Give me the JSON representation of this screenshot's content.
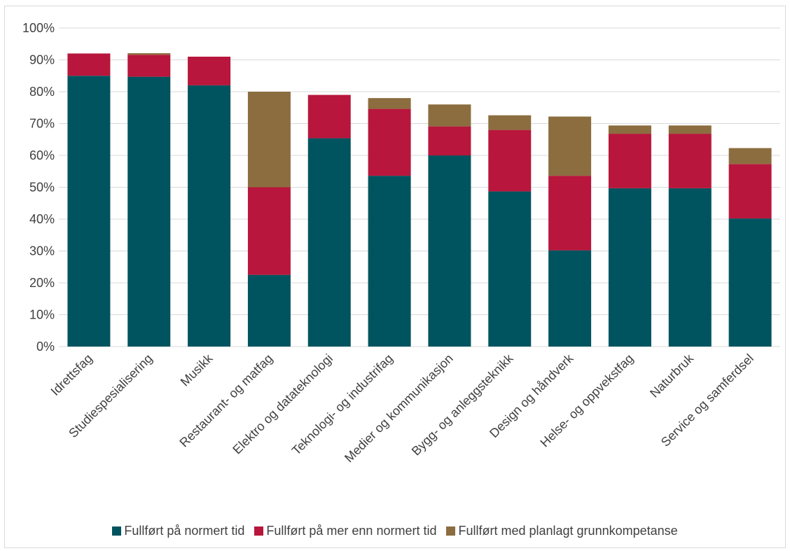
{
  "chart_data": {
    "type": "bar",
    "stacked": true,
    "title": "",
    "xlabel": "",
    "ylabel": "",
    "ylim": [
      0,
      100
    ],
    "yticks": [
      "0%",
      "10%",
      "20%",
      "30%",
      "40%",
      "50%",
      "60%",
      "70%",
      "80%",
      "90%",
      "100%"
    ],
    "grid": true,
    "legend_position": "bottom",
    "categories": [
      "Idrettsfag",
      "Studiespesialisering",
      "Musikk",
      "Restaurant- og matfag",
      "Elektro og datateknologi",
      "Teknologi- og industrifag",
      "Medier og kommunikasjon",
      "Bygg- og anleggsteknikk",
      "Design og håndverk",
      "Helse- og oppvekstfag",
      "Naturbruk",
      "Service og samferdsel"
    ],
    "series": [
      {
        "name": "Fullført på normert tid",
        "color": "#00545f",
        "values": [
          85,
          84.7,
          82,
          22.5,
          65.4,
          53.6,
          60,
          48.7,
          30.2,
          49.7,
          49.7,
          40.2
        ]
      },
      {
        "name": "Fullført på mer enn normert tid",
        "color": "#b8163c",
        "values": [
          7,
          6.9,
          9,
          27.5,
          13.6,
          21,
          9.1,
          19.3,
          23.4,
          17.1,
          17.1,
          17.1
        ]
      },
      {
        "name": "Fullført med planlagt grunnkompetanse",
        "color": "#8c6d3f",
        "values": [
          0,
          0.5,
          0,
          30,
          0,
          3.4,
          6.9,
          4.6,
          18.6,
          2.6,
          2.6,
          5.0
        ]
      }
    ]
  }
}
